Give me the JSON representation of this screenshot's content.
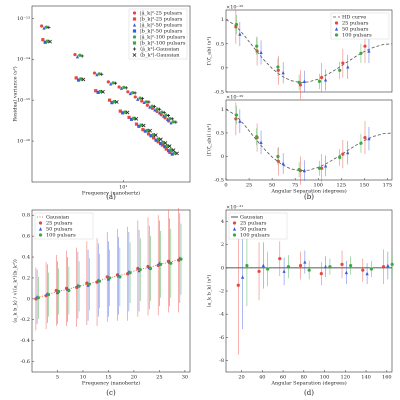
{
  "chart_data": [
    {
      "type": "scatter",
      "caption": "(a)",
      "xlabel": "Frequency (nanohertz)",
      "ylabel": "Residual variance (s²)",
      "log_x": true,
      "log_y": true,
      "x": [
        2,
        4,
        6,
        8,
        10,
        12,
        14,
        16,
        18,
        20,
        22,
        24,
        26,
        28
      ],
      "xlim": [
        1.5,
        40
      ],
      "xticks": [
        {
          "value": 10,
          "label": "10¹"
        }
      ],
      "ylim": [
        1e-17,
        2e-13
      ],
      "yticks": [
        {
          "value": 1e-16,
          "label": "10⁻¹⁶"
        },
        {
          "value": 1e-15,
          "label": "10⁻¹⁵"
        },
        {
          "value": 1e-14,
          "label": "10⁻¹⁴"
        },
        {
          "value": 1e-13,
          "label": "10⁻¹³"
        }
      ],
      "legend": "upper right",
      "series": [
        {
          "name": "|ã_k|²-25 pulsars",
          "color": "#e8473c",
          "marker": "circle",
          "values": [
            6.5e-14,
            1.3e-14,
            4.6e-15,
            2.8e-15,
            2.1e-15,
            1.6e-15,
            1.2e-15,
            9.5e-16,
            7.5e-16,
            6.3e-16,
            5.3e-16,
            4.4e-16,
            3.7e-16,
            3.1e-16
          ]
        },
        {
          "name": "|b̃_k|²-25 pulsars",
          "color": "#e8473c",
          "marker": "square",
          "values": [
            3e-14,
            3.5e-15,
            1.7e-15,
            1e-15,
            5.4e-16,
            3.8e-16,
            2.6e-16,
            1.9e-16,
            1.5e-16,
            1.2e-16,
            9.6e-17,
            8e-17,
            6.4e-17,
            5.3e-17
          ]
        },
        {
          "name": "|ã_k|²-50 pulsars",
          "color": "#3b5bdb",
          "marker": "triangle",
          "values": [
            5.8e-14,
            1.15e-14,
            4.2e-15,
            2.5e-15,
            1.95e-15,
            1.45e-15,
            1.05e-15,
            8.8e-16,
            6.8e-16,
            5.8e-16,
            4.9e-16,
            4.1e-16,
            3.4e-16,
            2.8e-16
          ]
        },
        {
          "name": "|b̃_k|²-50 pulsars",
          "color": "#3b5bdb",
          "marker": "square",
          "values": [
            2.6e-14,
            3.1e-15,
            1.55e-15,
            8.7e-16,
            4.9e-16,
            3.4e-16,
            2.3e-16,
            1.75e-16,
            1.35e-16,
            1.05e-16,
            8.7e-17,
            7.3e-17,
            5.8e-17,
            4.8e-17
          ]
        },
        {
          "name": "|ã_k|²-100 pulsars",
          "color": "#3aa843",
          "marker": "circle",
          "values": [
            6.1e-14,
            1.25e-14,
            4.4e-15,
            2.65e-15,
            2.05e-15,
            1.52e-15,
            1.12e-15,
            9.1e-16,
            7.1e-16,
            6.1e-16,
            5.1e-16,
            4.3e-16,
            3.55e-16,
            2.95e-16
          ]
        },
        {
          "name": "|b̃_k|²-100 pulsars",
          "color": "#3aa843",
          "marker": "square",
          "values": [
            2.75e-14,
            3.3e-15,
            1.62e-15,
            9.2e-16,
            5.1e-16,
            3.6e-16,
            2.45e-16,
            1.82e-16,
            1.42e-16,
            1.12e-16,
            9.2e-17,
            7.6e-17,
            6.1e-17,
            5.1e-17
          ]
        },
        {
          "name": "⟨ã_k²⟩-Gaussian",
          "color": "#222222",
          "marker": "plus",
          "values": [
            6e-14,
            1.2e-14,
            4.3e-15,
            2.6e-15,
            2e-15,
            1.5e-15,
            1.1e-15,
            9e-16,
            7e-16,
            6e-16,
            5e-16,
            4.2e-16,
            3.5e-16,
            2.9e-16
          ]
        },
        {
          "name": "⟨b̃_k²⟩-Gaussian",
          "color": "#222222",
          "marker": "cross",
          "values": [
            2.7e-14,
            3.2e-15,
            1.6e-15,
            9e-16,
            5e-16,
            3.5e-16,
            2.4e-16,
            1.8e-16,
            1.4e-16,
            1.1e-16,
            9e-17,
            7.5e-17,
            6e-17,
            5e-17
          ]
        }
      ]
    },
    {
      "type": "scatter",
      "ylabel": "Γ(ζ_ab) (s²)",
      "y_offset_label": "×10⁻²⁹",
      "xlim": [
        0,
        180
      ],
      "ylim": [
        -0.5,
        1.2
      ],
      "yticks": [
        -0.5,
        0,
        0.5,
        1
      ],
      "legend": "upper right",
      "series": [
        {
          "name": "HD curve",
          "color": "#555555",
          "line": "dashed",
          "x": [
            0,
            10,
            20,
            30,
            40,
            50,
            60,
            70,
            80,
            90,
            100,
            110,
            120,
            130,
            140,
            150,
            160,
            170,
            180
          ],
          "values": [
            1.0,
            0.884,
            0.668,
            0.424,
            0.188,
            -0.012,
            -0.164,
            -0.262,
            -0.302,
            -0.29,
            -0.232,
            -0.138,
            -0.022,
            0.104,
            0.228,
            0.34,
            0.426,
            0.482,
            0.5
          ]
        },
        {
          "name": "25 pulsars",
          "color": "#e8473c",
          "marker": "circle",
          "x": [
            12,
            35,
            58,
            82,
            105,
            128,
            152
          ],
          "values": [
            0.85,
            0.35,
            -0.05,
            -0.35,
            -0.2,
            0.1,
            0.45
          ],
          "errors": [
            0.35,
            0.3,
            0.3,
            0.3,
            0.3,
            0.3,
            0.35
          ]
        },
        {
          "name": "50 pulsars",
          "color": "#3b5bdb",
          "marker": "triangle",
          "x": [
            15,
            38,
            62,
            85,
            108,
            132,
            155
          ],
          "values": [
            0.7,
            0.32,
            -0.1,
            -0.28,
            -0.25,
            0.02,
            0.35
          ],
          "errors": [
            0.25,
            0.25,
            0.22,
            0.22,
            0.22,
            0.25,
            0.25
          ]
        },
        {
          "name": "100 pulsars",
          "color": "#3aa843",
          "marker": "circle",
          "x": [
            10,
            32,
            55,
            78,
            100,
            122,
            145
          ],
          "values": [
            0.9,
            0.45,
            0.02,
            -0.3,
            -0.28,
            -0.05,
            0.3
          ],
          "errors": [
            0.2,
            0.18,
            0.18,
            0.16,
            0.16,
            0.18,
            0.2
          ]
        }
      ]
    },
    {
      "type": "scatter",
      "caption": "(b)",
      "xlabel": "Angular Separation (degrees)",
      "ylabel": "⟨Γ(ζ_ab)⟩ (s²)",
      "y_offset_label": "×10⁻²⁹",
      "xlim": [
        0,
        180
      ],
      "xticks": [
        0,
        25,
        50,
        75,
        100,
        125,
        150,
        175
      ],
      "ylim": [
        -0.5,
        1.2
      ],
      "yticks": [
        -0.5,
        0,
        0.5,
        1
      ],
      "series": [
        {
          "name": "HD curve",
          "color": "#555555",
          "line": "dashed",
          "x": [
            0,
            10,
            20,
            30,
            40,
            50,
            60,
            70,
            80,
            90,
            100,
            110,
            120,
            130,
            140,
            150,
            160,
            170,
            180
          ],
          "values": [
            1.0,
            0.884,
            0.668,
            0.424,
            0.188,
            -0.012,
            -0.164,
            -0.262,
            -0.302,
            -0.29,
            -0.232,
            -0.138,
            -0.022,
            0.104,
            0.228,
            0.34,
            0.426,
            0.482,
            0.5
          ]
        },
        {
          "name": "25 pulsars",
          "color": "#e8473c",
          "marker": "circle",
          "x": [
            12,
            35,
            58,
            82,
            105,
            128,
            152
          ],
          "values": [
            0.8,
            0.4,
            -0.1,
            -0.3,
            -0.25,
            0.05,
            0.4
          ],
          "errors": [
            0.35,
            0.3,
            0.3,
            0.3,
            0.3,
            0.3,
            0.35
          ]
        },
        {
          "name": "50 pulsars",
          "color": "#3b5bdb",
          "marker": "triangle",
          "x": [
            15,
            38,
            62,
            85,
            108,
            132,
            155
          ],
          "values": [
            0.75,
            0.3,
            -0.15,
            -0.3,
            -0.2,
            0.08,
            0.38
          ],
          "errors": [
            0.25,
            0.25,
            0.22,
            0.22,
            0.22,
            0.25,
            0.25
          ]
        },
        {
          "name": "100 pulsars",
          "color": "#3aa843",
          "marker": "circle",
          "x": [
            10,
            32,
            55,
            78,
            100,
            122,
            145
          ],
          "values": [
            0.88,
            0.42,
            0.0,
            -0.28,
            -0.25,
            -0.02,
            0.28
          ],
          "errors": [
            0.2,
            0.18,
            0.18,
            0.16,
            0.16,
            0.18,
            0.2
          ]
        }
      ]
    },
    {
      "type": "scatter",
      "caption": "(c)",
      "xlabel": "Frequency (nanohertz)",
      "ylabel": "⟨a_k b_k⟩ / √(⟨a_k²⟩⟨b_k²⟩)",
      "x": [
        1,
        3,
        5,
        7,
        9,
        11,
        13,
        15,
        17,
        19,
        21,
        23,
        25,
        27,
        29
      ],
      "xlim": [
        0,
        31
      ],
      "xticks": [
        5,
        10,
        15,
        20,
        25,
        30
      ],
      "ylim": [
        -0.7,
        0.85
      ],
      "yticks": [
        -0.6,
        -0.4,
        -0.2,
        0,
        0.2,
        0.4,
        0.6,
        0.8
      ],
      "legend": "upper left",
      "series": [
        {
          "name": "Gaussian",
          "color": "#e8473c",
          "line": "dotted",
          "values": [
            0.01,
            0.04,
            0.07,
            0.09,
            0.12,
            0.14,
            0.17,
            0.2,
            0.22,
            0.25,
            0.28,
            0.3,
            0.33,
            0.35,
            0.38
          ]
        },
        {
          "name": "25 pulsars",
          "color": "#e8473c",
          "marker": "circle",
          "values": [
            0.0,
            0.03,
            0.08,
            0.1,
            0.11,
            0.15,
            0.16,
            0.21,
            0.23,
            0.24,
            0.29,
            0.31,
            0.32,
            0.36,
            0.37
          ],
          "errors": [
            0.3,
            0.32,
            0.34,
            0.36,
            0.38,
            0.4,
            0.42,
            0.43,
            0.44,
            0.45,
            0.46,
            0.47,
            0.48,
            0.49,
            0.5
          ]
        },
        {
          "name": "50 pulsars",
          "color": "#3b5bdb",
          "marker": "triangle",
          "values": [
            0.02,
            0.05,
            0.06,
            0.09,
            0.13,
            0.13,
            0.18,
            0.19,
            0.22,
            0.26,
            0.27,
            0.3,
            0.34,
            0.35,
            0.39
          ],
          "errors": [
            0.26,
            0.28,
            0.3,
            0.31,
            0.32,
            0.34,
            0.35,
            0.36,
            0.37,
            0.38,
            0.39,
            0.4,
            0.41,
            0.42,
            0.43
          ]
        },
        {
          "name": "100 pulsars",
          "color": "#3aa843",
          "marker": "circle",
          "values": [
            0.01,
            0.04,
            0.07,
            0.08,
            0.12,
            0.14,
            0.17,
            0.2,
            0.21,
            0.25,
            0.28,
            0.29,
            0.33,
            0.34,
            0.38
          ],
          "errors": [
            0.2,
            0.21,
            0.22,
            0.23,
            0.24,
            0.25,
            0.26,
            0.27,
            0.28,
            0.29,
            0.3,
            0.31,
            0.32,
            0.33,
            0.34
          ]
        }
      ]
    },
    {
      "type": "scatter",
      "caption": "(d)",
      "xlabel": "Angular Separation (degrees)",
      "ylabel": "⟨a_k b_k⟩ (s²)",
      "y_offset_label": "×10⁻³¹",
      "xlim": [
        5,
        165
      ],
      "xticks": [
        20,
        40,
        60,
        80,
        100,
        120,
        140,
        160
      ],
      "ylim": [
        -9,
        5
      ],
      "yticks": [
        -8,
        -6,
        -4,
        -2,
        0,
        2,
        4
      ],
      "legend": "upper left",
      "series": [
        {
          "name": "Gaussian",
          "color": "#222222",
          "line": "solid",
          "x": [
            5,
            165
          ],
          "values": [
            0,
            0
          ]
        },
        {
          "name": "25 pulsars",
          "color": "#e8473c",
          "marker": "circle",
          "x": [
            18,
            38,
            58,
            78,
            98,
            118,
            138,
            158
          ],
          "values": [
            -1.5,
            -0.3,
            0.8,
            0.2,
            -0.5,
            0.3,
            -0.2,
            0.1
          ],
          "errors": [
            6,
            2.5,
            1.5,
            1.2,
            1,
            1.2,
            1,
            1.5
          ]
        },
        {
          "name": "50 pulsars",
          "color": "#3b5bdb",
          "marker": "triangle",
          "x": [
            21,
            41,
            61,
            81,
            101,
            121,
            141,
            161
          ],
          "values": [
            -0.8,
            0.2,
            -0.3,
            0.5,
            0.1,
            -0.4,
            -0.5,
            0.2
          ],
          "errors": [
            4.5,
            2,
            1.2,
            1,
            0.9,
            1,
            0.9,
            1.2
          ]
        },
        {
          "name": "100 pulsars",
          "color": "#3aa843",
          "marker": "circle",
          "x": [
            24,
            44,
            64,
            84,
            104,
            124,
            144,
            164
          ],
          "values": [
            0.2,
            -0.1,
            0.1,
            -0.2,
            0.1,
            0.2,
            -0.1,
            0.3
          ],
          "errors": [
            3.5,
            1.5,
            1,
            0.8,
            0.7,
            0.8,
            0.7,
            1
          ]
        }
      ]
    }
  ]
}
